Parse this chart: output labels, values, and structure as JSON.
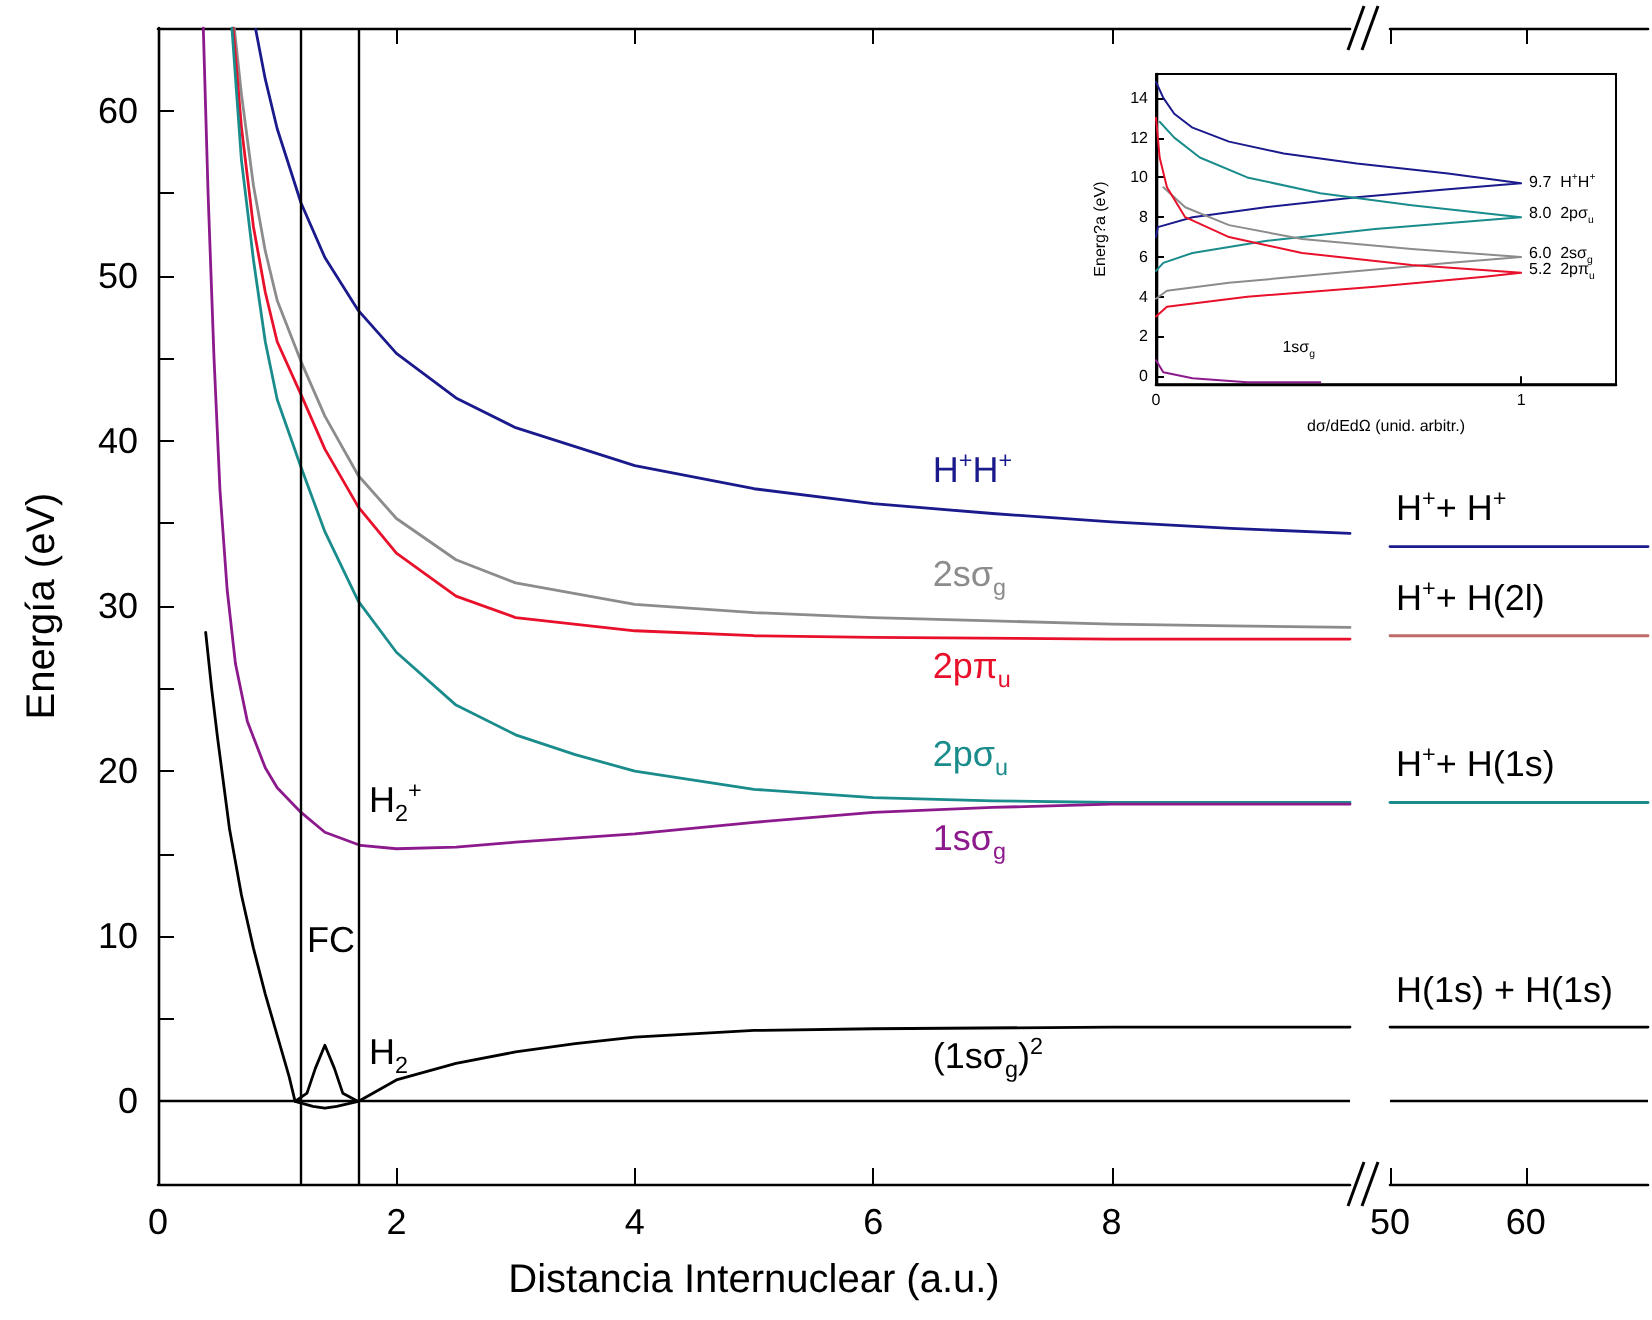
{
  "chart_data": [
    {
      "type": "line",
      "xlabel": "Distancia Internuclear (a.u.)",
      "ylabel": "Energía (eV)",
      "xlim": [
        0,
        10
      ],
      "xticks": [
        0,
        2,
        4,
        6,
        8
      ],
      "ylim": [
        -5,
        65
      ],
      "yticks": [
        {
          "value": -5,
          "label": null
        },
        0,
        {
          "value": 5,
          "label": null
        },
        10,
        {
          "value": 15,
          "label": null
        },
        20,
        {
          "value": 25,
          "label": null
        },
        30,
        {
          "value": 35,
          "label": null
        },
        40,
        {
          "value": 45,
          "label": null
        },
        50,
        {
          "value": 55,
          "label": null
        },
        60
      ],
      "ref_lines": [
        {
          "axis": "y",
          "value": 0,
          "color": "#000000"
        },
        {
          "axis": "x",
          "value": 1.2,
          "color": "#000000"
        },
        {
          "axis": "x",
          "value": 1.68,
          "color": "#000000"
        }
      ],
      "series": [
        {
          "name": "H$^{+}$H$^{+}$",
          "color": "#1a1a8c",
          "x": [
            0.82,
            0.9,
            1.0,
            1.2,
            1.4,
            1.68,
            2,
            2.5,
            3,
            4,
            5,
            6,
            7,
            8,
            9,
            10
          ],
          "values": [
            64.9,
            61.9,
            58.9,
            54.4,
            51.1,
            47.9,
            45.3,
            42.6,
            40.8,
            38.5,
            37.1,
            36.2,
            35.6,
            35.1,
            34.7,
            34.4
          ]
        },
        {
          "name": "2sσ$_{g}$",
          "color": "#8c8c8c",
          "x": [
            0.64,
            0.7,
            0.8,
            0.9,
            1.0,
            1.2,
            1.4,
            1.68,
            2,
            2.5,
            3,
            4,
            5,
            6,
            7,
            8,
            9,
            10
          ],
          "values": [
            65,
            61,
            55.5,
            51.5,
            48.5,
            44.8,
            41.5,
            37.9,
            35.3,
            32.8,
            31.4,
            30.1,
            29.6,
            29.3,
            29.1,
            28.9,
            28.8,
            28.7
          ]
        },
        {
          "name": "2pπ$_{u}$",
          "color": "#e8102a",
          "x": [
            0.63,
            0.7,
            0.8,
            0.9,
            1.0,
            1.2,
            1.4,
            1.68,
            2,
            2.5,
            3,
            4,
            5,
            6,
            8,
            10
          ],
          "values": [
            65,
            59,
            53,
            49,
            46,
            42.8,
            39.5,
            36.0,
            33.2,
            30.6,
            29.3,
            28.5,
            28.2,
            28.1,
            28.0,
            28.0
          ]
        },
        {
          "name": "2pσ$_{u}$",
          "color": "#1a8c8c",
          "x": [
            0.62,
            0.7,
            0.8,
            0.9,
            1.0,
            1.2,
            1.4,
            1.68,
            2,
            2.5,
            3,
            3.5,
            4,
            5,
            6,
            7,
            8,
            10
          ],
          "values": [
            65,
            57,
            51,
            46,
            42.5,
            38.4,
            34.5,
            30.3,
            27.2,
            24.0,
            22.2,
            21.0,
            20.0,
            18.9,
            18.4,
            18.2,
            18.1,
            18.1
          ]
        },
        {
          "name": "1sσ$_{g}$",
          "color": "#8c1a8c",
          "x": [
            0.38,
            0.42,
            0.47,
            0.52,
            0.58,
            0.65,
            0.75,
            0.9,
            1.0,
            1.2,
            1.4,
            1.7,
            2,
            2.5,
            3,
            4,
            5,
            6,
            7,
            8,
            10
          ],
          "values": [
            65,
            55,
            45,
            37,
            31,
            26.5,
            23,
            20.2,
            19,
            17.5,
            16.3,
            15.5,
            15.3,
            15.4,
            15.7,
            16.2,
            16.9,
            17.5,
            17.8,
            18.0,
            18.0
          ]
        },
        {
          "color": "#000000",
          "x": [
            0.4,
            0.45,
            0.5,
            0.6,
            0.7,
            0.8,
            0.9,
            1.0,
            1.1,
            1.15,
            1.3,
            1.4,
            1.5,
            1.68,
            2,
            2.5,
            3,
            3.5,
            4,
            5,
            6,
            8,
            10
          ],
          "values": [
            28.4,
            25,
            22,
            16.5,
            12.5,
            9.3,
            6.5,
            4.0,
            1.5,
            0,
            -0.3,
            -0.4,
            -0.3,
            0,
            1.3,
            2.3,
            3.0,
            3.5,
            3.9,
            4.3,
            4.4,
            4.5,
            4.5
          ]
        },
        {
          "color": "#000000",
          "x": [
            1.15,
            1.25,
            1.32,
            1.4,
            1.48,
            1.55,
            1.68
          ],
          "values": [
            0,
            0.5,
            2.0,
            3.4,
            2.0,
            0.5,
            0
          ]
        }
      ],
      "annotations": [
        {
          "text": "H$_{2}$$^{+}$",
          "x": 1.72,
          "y": 15.5
        },
        {
          "text": "FC",
          "x": 1.2,
          "y": 7.5
        },
        {
          "text": "H$_{2}$",
          "x": 1.72,
          "y": 0.2
        },
        {
          "text": "(1sσ$_{g}$)$^{2}$",
          "x": 6.45,
          "y": 0
        }
      ]
    },
    {
      "type": "line",
      "xlim": [
        50,
        69
      ],
      "xticks": [
        50,
        60
      ],
      "ylim": [
        -5,
        65
      ],
      "tick_labels": "x",
      "ref_lines": [
        {
          "axis": "y",
          "value": 0,
          "color": "#000000"
        }
      ],
      "series": [
        {
          "color": "#1a1a8c",
          "x": [
            50,
            69
          ],
          "values": [
            33.6,
            33.6
          ]
        },
        {
          "color": "#c06a6a",
          "x": [
            50,
            69
          ],
          "values": [
            28.2,
            28.2
          ]
        },
        {
          "color": "#1a8c8c",
          "x": [
            50,
            69
          ],
          "values": [
            18.1,
            18.1
          ]
        },
        {
          "color": "#000000",
          "x": [
            50,
            69
          ],
          "values": [
            4.5,
            4.5
          ]
        }
      ],
      "annotations": [
        {
          "text": "H$^{+}$+ H$^{+}$",
          "x": 50,
          "y": 33.6
        },
        {
          "text": "H$^{+}$+ H(2l)",
          "x": 50,
          "y": 28.2
        },
        {
          "text": "H$^{+}$+ H(1s)",
          "x": 50,
          "y": 18.1
        },
        {
          "text": "H(1s) + H(1s)",
          "x": 50,
          "y": 4.5
        }
      ]
    },
    {
      "type": "line",
      "xlabel": "dσ/dEdΩ (unid. arbitr.)",
      "ylabel": "Energ?a (eV)",
      "xlim": [
        0,
        1.26
      ],
      "xticks": [
        0,
        1
      ],
      "ylim": [
        -0.4,
        15.2
      ],
      "yticks": [
        0,
        2,
        4,
        6,
        8,
        10,
        12,
        14
      ],
      "series": [
        {
          "color": "#1a1a8c",
          "x": [
            0,
            0.005,
            0.1,
            0.3,
            0.55,
            0.8,
            1.0,
            0.8,
            0.55,
            0.35,
            0.2,
            0.1,
            0.05,
            0.02,
            0
          ],
          "values": [
            7.0,
            7.5,
            8.0,
            8.5,
            9.0,
            9.4,
            9.7,
            10.2,
            10.7,
            11.2,
            11.8,
            12.5,
            13.2,
            14,
            14.8
          ]
        },
        {
          "color": "#1a8c8c",
          "x": [
            0,
            0.02,
            0.1,
            0.3,
            0.6,
            1.0,
            0.7,
            0.45,
            0.25,
            0.12,
            0.05,
            0.01
          ],
          "values": [
            5.3,
            5.7,
            6.2,
            6.8,
            7.4,
            8.0,
            8.6,
            9.2,
            10,
            11,
            12,
            12.8
          ]
        },
        {
          "color": "#8c8c8c",
          "x": [
            0,
            0.03,
            0.2,
            0.5,
            0.8,
            1.0,
            0.7,
            0.4,
            0.2,
            0.08,
            0.02
          ],
          "values": [
            3.9,
            4.3,
            4.7,
            5.2,
            5.7,
            6.0,
            6.4,
            6.9,
            7.6,
            8.5,
            9.5
          ]
        },
        {
          "color": "#e8102a",
          "x": [
            0,
            0.03,
            0.25,
            0.6,
            0.9,
            1.0,
            0.7,
            0.4,
            0.2,
            0.08,
            0.03,
            0.01,
            0
          ],
          "values": [
            3.0,
            3.5,
            4.0,
            4.5,
            5.0,
            5.2,
            5.6,
            6.2,
            7.0,
            8.0,
            9.5,
            11,
            13
          ]
        },
        {
          "color": "#8c1a8c",
          "x": [
            0,
            0.02,
            0.1,
            0.25,
            0.45
          ],
          "values": [
            0.8,
            0.2,
            -0.1,
            -0.3,
            -0.3
          ]
        }
      ],
      "annotations": [
        {
          "text": "9.7  H$^{+}$H$^{+}$",
          "x": 1,
          "y": 9.7
        },
        {
          "text": "8.0  2pσ$_{u}$",
          "x": 1,
          "y": 8.0
        },
        {
          "text": "6.0  2sσ$_{g}$",
          "x": 1,
          "y": 6.0
        },
        {
          "text": "5.2  2pπ$_{u}$",
          "x": 1,
          "y": 5.2
        },
        {
          "text": "1sσ$_{g}$",
          "x": 0.33,
          "y": -0.3
        }
      ]
    }
  ]
}
